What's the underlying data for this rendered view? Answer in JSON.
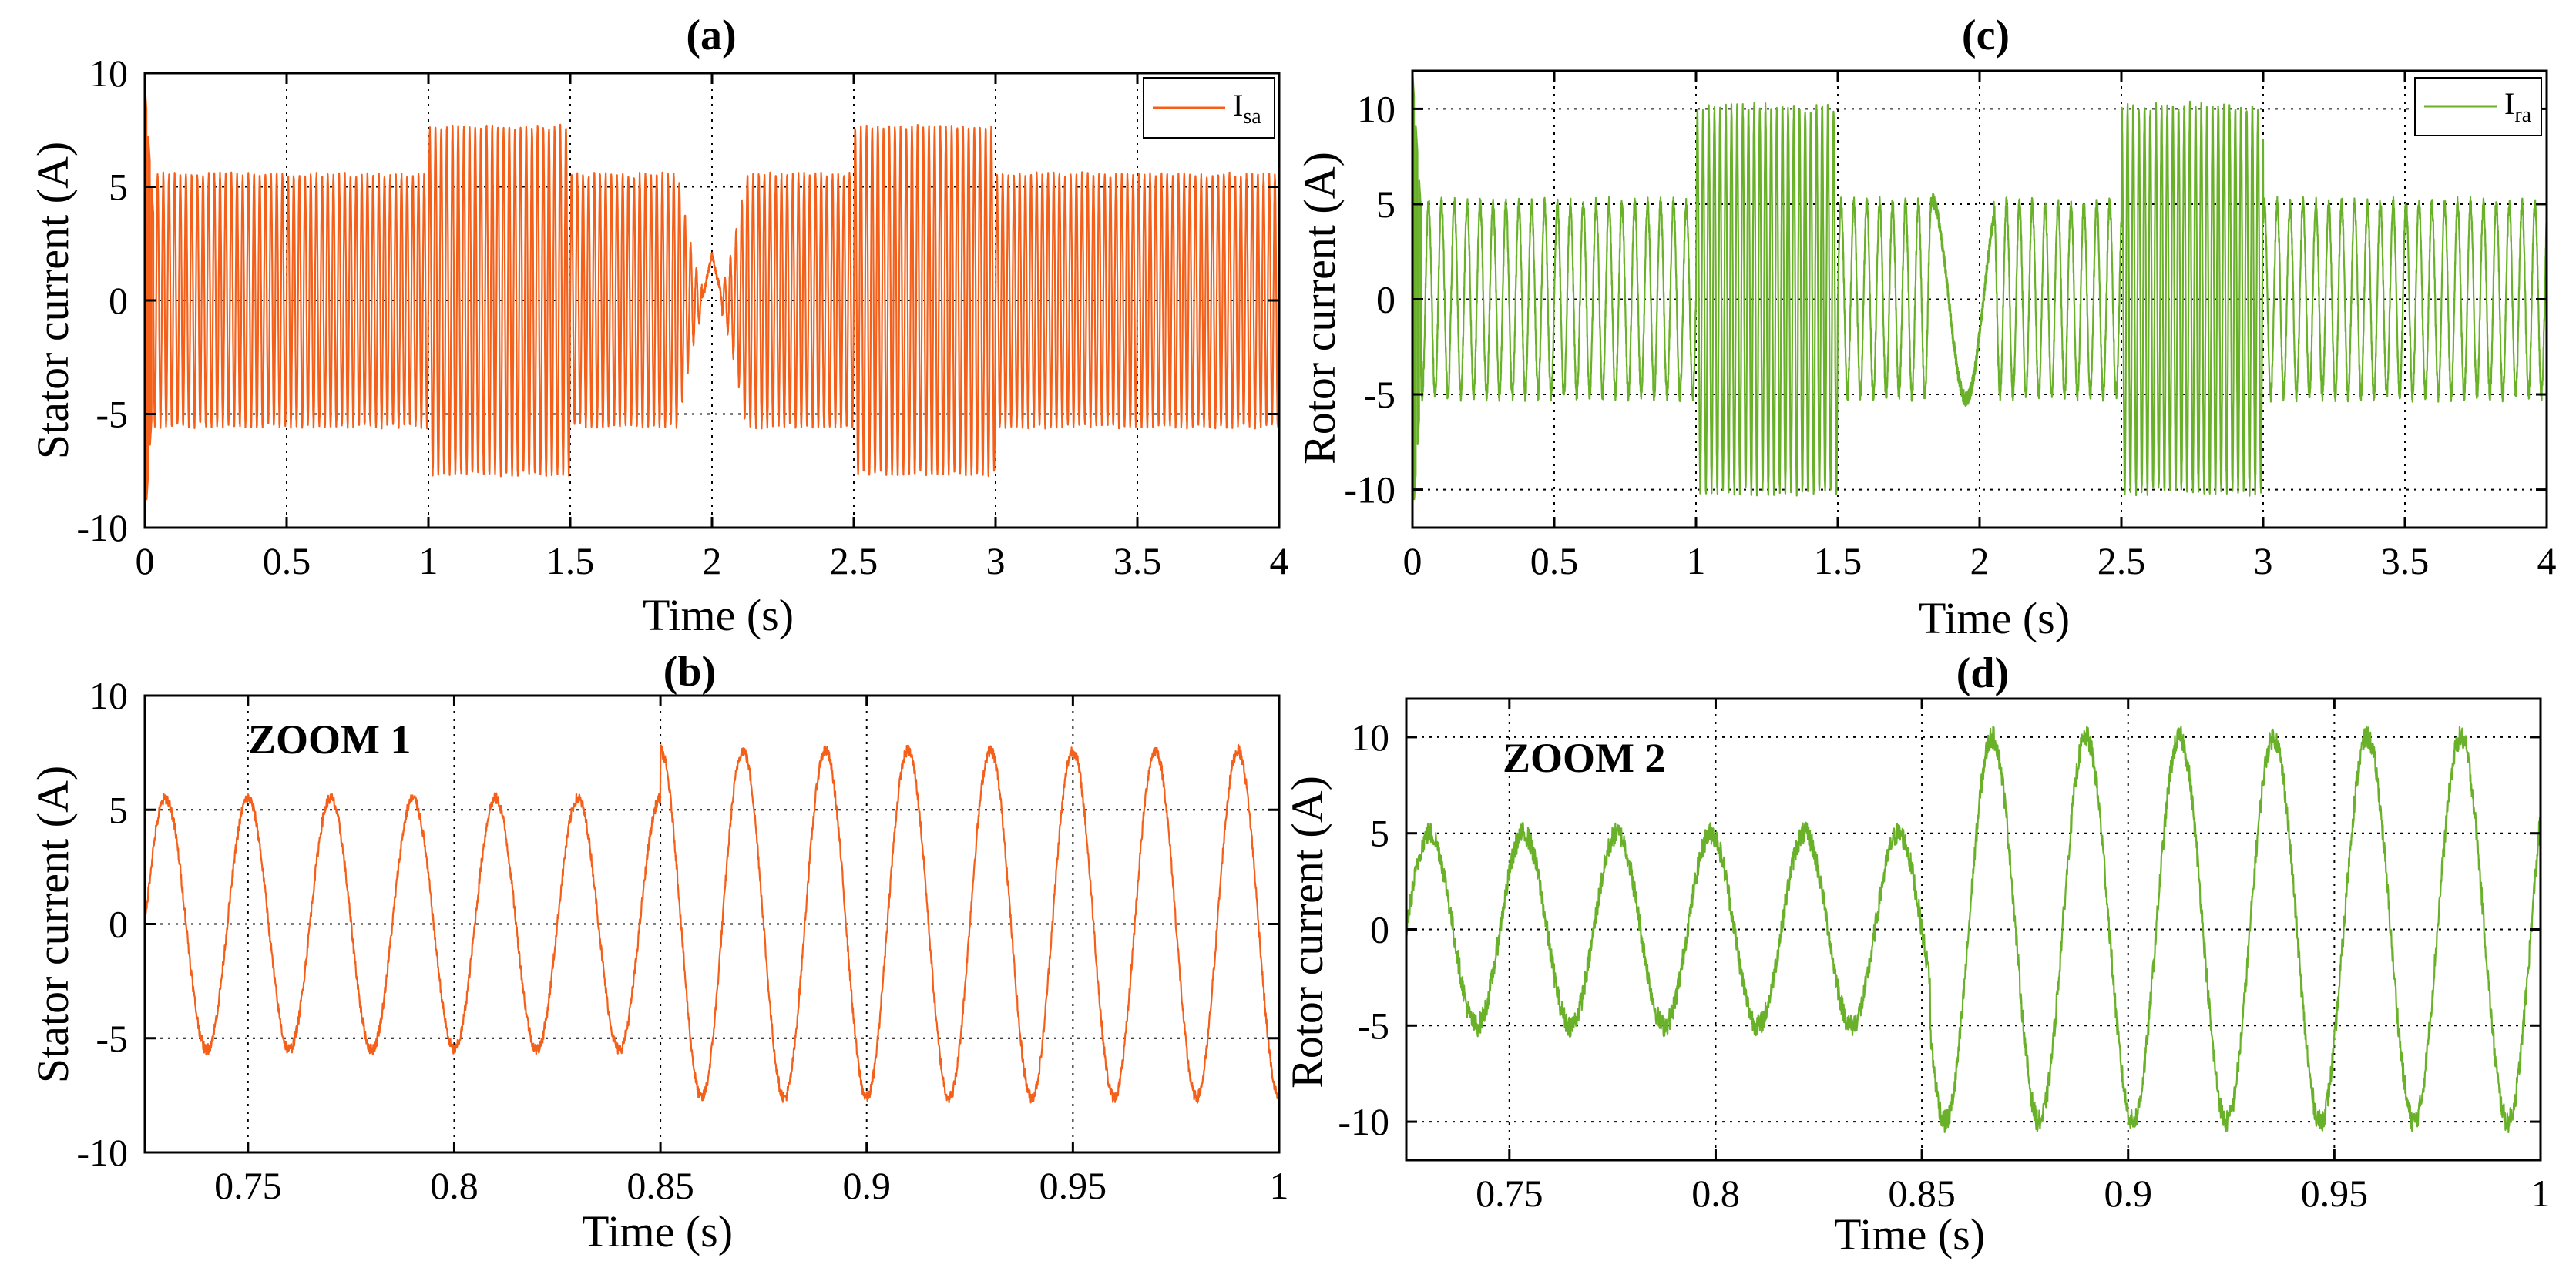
{
  "colors": {
    "stator": "#f4601a",
    "rotor": "#6ab12a"
  },
  "chart_data": [
    {
      "type": "line",
      "title": "(a)",
      "xlabel": "Time (s)",
      "ylabel": "Stator current (A)",
      "xlim": [
        0,
        4
      ],
      "ylim": [
        -10,
        10
      ],
      "xticks": [
        0,
        0.5,
        1,
        1.5,
        2,
        2.5,
        3,
        3.5,
        4
      ],
      "xtick_labels": [
        "0",
        "0.5",
        "1",
        "1.5",
        "2",
        "2.5",
        "3",
        "3.5",
        "4"
      ],
      "yticks": [
        -10,
        -5,
        0,
        5,
        10
      ],
      "ytick_labels": [
        "-10",
        "-5",
        "0",
        "5",
        "10"
      ],
      "grid": true,
      "legend": {
        "position": "top-right",
        "label": "I",
        "subscript": "sa"
      },
      "series": [
        {
          "color": "stator",
          "frequency_hz": 50,
          "segments": [
            {
              "t_start": 0.0,
              "t_end": 1.0,
              "amplitude": 5.5
            },
            {
              "t_start": 1.0,
              "t_end": 1.5,
              "amplitude": 7.6
            },
            {
              "t_start": 1.5,
              "t_end": 1.88,
              "amplitude": 5.5
            },
            {
              "t_start": 1.88,
              "t_end": 2.12,
              "amplitude": 5.5,
              "note": "transient dip"
            },
            {
              "t_start": 2.12,
              "t_end": 2.5,
              "amplitude": 5.5
            },
            {
              "t_start": 2.5,
              "t_end": 3.0,
              "amplitude": 7.6
            },
            {
              "t_start": 3.0,
              "t_end": 4.0,
              "amplitude": 5.5
            }
          ],
          "startup_peaks": [
            9.5,
            -10
          ]
        }
      ]
    },
    {
      "type": "line",
      "title": "(b)",
      "annotation": "ZOOM 1",
      "xlabel": "Time (s)",
      "ylabel": "Stator current (A)",
      "xlim": [
        0.725,
        1
      ],
      "ylim": [
        -10,
        10
      ],
      "xticks": [
        0.75,
        0.8,
        0.85,
        0.9,
        0.95,
        1
      ],
      "xtick_labels": [
        "0.75",
        "0.8",
        "0.85",
        "0.9",
        "0.95",
        "1"
      ],
      "yticks": [
        -10,
        -5,
        0,
        5,
        10
      ],
      "ytick_labels": [
        "-10",
        "-5",
        "0",
        "5",
        "10"
      ],
      "grid": true,
      "series": [
        {
          "color": "stator",
          "frequency_hz": 50,
          "segments": [
            {
              "t_start": 0.725,
              "t_end": 0.85,
              "amplitude": 5.5
            },
            {
              "t_start": 0.85,
              "t_end": 1.0,
              "amplitude": 7.6
            }
          ]
        }
      ]
    },
    {
      "type": "line",
      "title": "(c)",
      "xlabel": "Time (s)",
      "ylabel": "Rotor current (A)",
      "xlim": [
        0,
        4
      ],
      "ylim": [
        -12,
        12
      ],
      "xticks": [
        0,
        0.5,
        1,
        1.5,
        2,
        2.5,
        3,
        3.5,
        4
      ],
      "xtick_labels": [
        "0",
        "0.5",
        "1",
        "1.5",
        "2",
        "2.5",
        "3",
        "3.5",
        "4"
      ],
      "yticks": [
        -10,
        -5,
        0,
        5,
        10
      ],
      "ytick_labels": [
        "-10",
        "-5",
        "0",
        "5",
        "10"
      ],
      "grid": true,
      "legend": {
        "position": "top-right",
        "label": "I",
        "subscript": "ra"
      },
      "series": [
        {
          "color": "rotor",
          "segments": [
            {
              "t_start": 0.0,
              "t_end": 1.0,
              "amplitude": 5,
              "frequency_hz": 22
            },
            {
              "t_start": 1.0,
              "t_end": 1.5,
              "amplitude": 10,
              "frequency_hz": 50
            },
            {
              "t_start": 1.5,
              "t_end": 1.83,
              "amplitude": 5,
              "frequency_hz": 22
            },
            {
              "t_start": 1.83,
              "t_end": 2.05,
              "amplitude": 5,
              "note": "slow transient"
            },
            {
              "t_start": 2.05,
              "t_end": 2.5,
              "amplitude": 5,
              "frequency_hz": 22
            },
            {
              "t_start": 2.5,
              "t_end": 3.0,
              "amplitude": 10,
              "frequency_hz": 50
            },
            {
              "t_start": 3.0,
              "t_end": 4.0,
              "amplitude": 5,
              "frequency_hz": 22
            }
          ],
          "startup_peaks": [
            12,
            -12
          ]
        }
      ]
    },
    {
      "type": "line",
      "title": "(d)",
      "annotation": "ZOOM 2",
      "xlabel": "Time (s)",
      "ylabel": "Rotor current (A)",
      "xlim": [
        0.725,
        1
      ],
      "ylim": [
        -12,
        12
      ],
      "xticks": [
        0.75,
        0.8,
        0.85,
        0.9,
        0.95,
        1
      ],
      "xtick_labels": [
        "0.75",
        "0.8",
        "0.85",
        "0.9",
        "0.95",
        "1"
      ],
      "yticks": [
        -10,
        -5,
        0,
        5,
        10
      ],
      "ytick_labels": [
        "-10",
        "-5",
        "0",
        "5",
        "10"
      ],
      "grid": true,
      "series": [
        {
          "color": "rotor",
          "segments": [
            {
              "t_start": 0.725,
              "t_end": 0.852,
              "amplitude": 5,
              "frequency_hz": 44
            },
            {
              "t_start": 0.852,
              "t_end": 1.0,
              "amplitude": 10,
              "frequency_hz": 44
            }
          ]
        }
      ]
    }
  ]
}
